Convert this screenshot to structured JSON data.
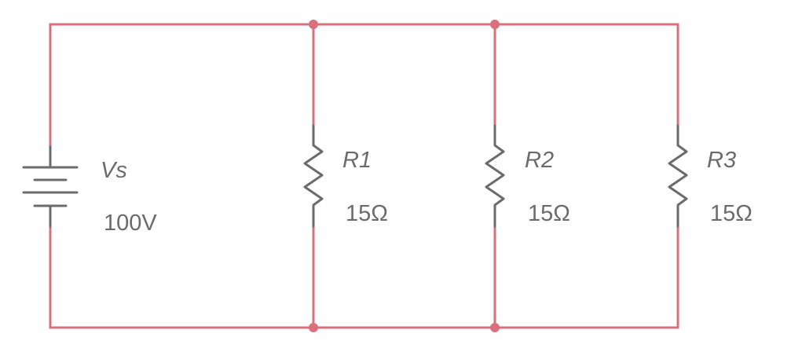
{
  "colors": {
    "wire": "#d9707c",
    "component": "#6b6b6b",
    "text": "#6b6b6b",
    "background": "#ffffff"
  },
  "source": {
    "name": "Vs",
    "value": "100V",
    "icon": "dc-voltage-source-icon"
  },
  "resistors": [
    {
      "name": "R1",
      "value": "15Ω",
      "icon": "resistor-icon"
    },
    {
      "name": "R2",
      "value": "15Ω",
      "icon": "resistor-icon"
    },
    {
      "name": "R3",
      "value": "15Ω",
      "icon": "resistor-icon"
    }
  ]
}
